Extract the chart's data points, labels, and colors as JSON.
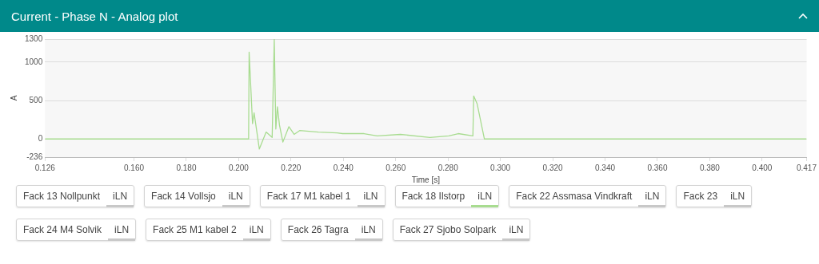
{
  "chart_data": {
    "type": "line",
    "title": "Current - Phase N - Analog plot",
    "xlabel": "Time [s]",
    "ylabel": "A",
    "xlim": [
      0.126,
      0.417
    ],
    "xticks": [
      0.126,
      {
        "value": 0.16,
        "label": "0.160"
      },
      {
        "value": 0.18,
        "label": "0.180"
      },
      {
        "value": 0.2,
        "label": "0.200"
      },
      {
        "value": 0.22,
        "label": "0.220"
      },
      {
        "value": 0.24,
        "label": "0.240"
      },
      {
        "value": 0.26,
        "label": "0.260"
      },
      {
        "value": 0.28,
        "label": "0.280"
      },
      {
        "value": 0.3,
        "label": "0.300"
      },
      {
        "value": 0.32,
        "label": "0.320"
      },
      {
        "value": 0.34,
        "label": "0.340"
      },
      {
        "value": 0.36,
        "label": "0.360"
      },
      {
        "value": 0.38,
        "label": "0.380"
      },
      {
        "value": 0.4,
        "label": "0.400"
      },
      0.417
    ],
    "ylim": [
      -236,
      1300
    ],
    "yticks": [
      -236,
      0,
      500,
      1000,
      1300
    ],
    "grid": "y",
    "legend": "bottom",
    "marker": "none",
    "line_style": "solid",
    "annotations": [
      "Fack 13 Nollpunkt",
      "Fack 14 Vollsjo",
      "Fack 17 M1 kabel 1",
      "Fack 22 Assmasa Vindkraft",
      "Fack 23",
      "Fack 24 M4 Solvik",
      "Fack 25 M1 kabel 2",
      "Fack 26 Tagra",
      "Fack 27 Sjobo Solpark",
      "iLN"
    ],
    "series": [
      {
        "name": "Fack 18 Ilstorp",
        "color": "#a8dc90",
        "x": [
          0.126,
          0.2038,
          0.204,
          0.2053,
          0.2059,
          0.2079,
          0.2105,
          0.2128,
          0.2136,
          0.2142,
          0.2148,
          0.2156,
          0.2169,
          0.2192,
          0.2212,
          0.2233,
          0.2305,
          0.2376,
          0.2397,
          0.2479,
          0.2529,
          0.2618,
          0.2731,
          0.2803,
          0.2839,
          0.2895,
          0.2898,
          0.2911,
          0.2939,
          0.417
        ],
        "values": [
          0,
          0,
          1130,
          200,
          340,
          -130,
          90,
          20,
          1300,
          130,
          420,
          180,
          -40,
          160,
          60,
          110,
          90,
          80,
          70,
          70,
          40,
          60,
          20,
          40,
          70,
          40,
          560,
          460,
          0,
          0
        ]
      }
    ]
  }
}
